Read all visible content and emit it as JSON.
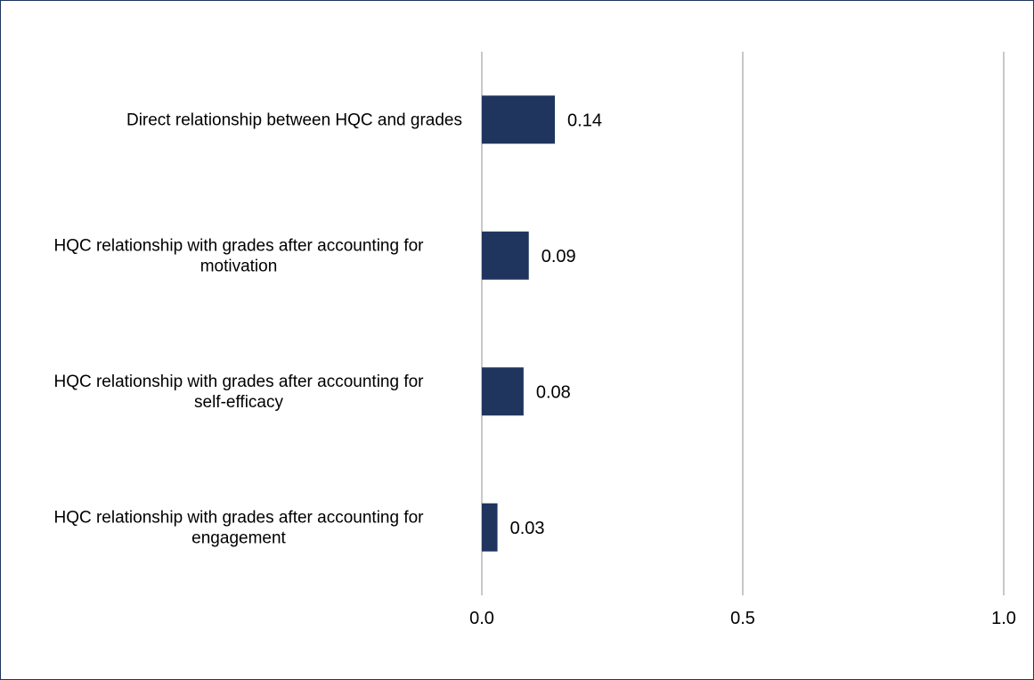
{
  "chart_data": {
    "type": "bar",
    "orientation": "horizontal",
    "categories": [
      [
        "Direct relationship between HQC and grades"
      ],
      [
        "HQC relationship with grades after accounting for",
        "motivation"
      ],
      [
        "HQC relationship with grades after accounting for",
        "self-efficacy"
      ],
      [
        "HQC relationship with grades after accounting for",
        "engagement"
      ]
    ],
    "values": [
      0.14,
      0.09,
      0.08,
      0.03
    ],
    "value_labels": [
      "0.14",
      "0.09",
      "0.08",
      "0.03"
    ],
    "xlim": [
      0,
      1.0
    ],
    "xticks": [
      0.0,
      0.5,
      1.0
    ],
    "xtick_labels": [
      "0.0",
      "0.5",
      "1.0"
    ],
    "title": "",
    "xlabel": "",
    "ylabel": "",
    "grid": true,
    "legend": "none",
    "colors": {
      "bar": "#1f355e",
      "grid": "#c8c8c8",
      "border": "#1f355e"
    }
  }
}
